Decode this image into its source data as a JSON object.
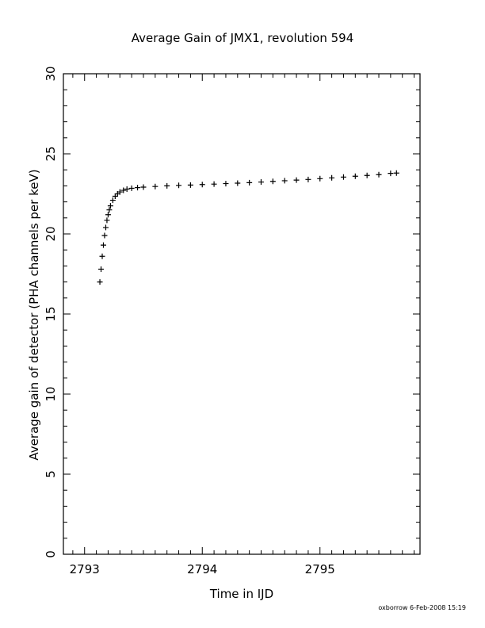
{
  "chart_data": {
    "type": "scatter",
    "title": "Average Gain of JMX1, revolution 594",
    "xlabel": "Time in IJD",
    "ylabel": "Average gain of detector (PHA channels per keV)",
    "xlim": [
      2792.82,
      2795.85
    ],
    "ylim": [
      0,
      30
    ],
    "xticks": [
      2793,
      2794,
      2795
    ],
    "xtick_labels": [
      "2793",
      "2794",
      "2795"
    ],
    "yticks": [
      0,
      5,
      10,
      15,
      20,
      25,
      30
    ],
    "ytick_labels": [
      "0",
      "5",
      "10",
      "15",
      "20",
      "25",
      "30"
    ],
    "marker": "+",
    "grid": false,
    "series": [
      {
        "x": [
          2793.13,
          2793.14,
          2793.15,
          2793.16,
          2793.17,
          2793.18,
          2793.19,
          2793.2,
          2793.21,
          2793.22,
          2793.24,
          2793.26,
          2793.28,
          2793.3,
          2793.33,
          2793.36,
          2793.4,
          2793.45,
          2793.5,
          2793.6,
          2793.7,
          2793.8,
          2793.9,
          2794.0,
          2794.1,
          2794.2,
          2794.3,
          2794.4,
          2794.5,
          2794.6,
          2794.7,
          2794.8,
          2794.9,
          2795.0,
          2795.1,
          2795.2,
          2795.3,
          2795.4,
          2795.5,
          2795.6,
          2795.65
        ],
        "y": [
          17.0,
          17.8,
          18.6,
          19.3,
          19.9,
          20.4,
          20.85,
          21.2,
          21.5,
          21.75,
          22.1,
          22.35,
          22.5,
          22.62,
          22.72,
          22.8,
          22.85,
          22.89,
          22.92,
          22.96,
          23.0,
          23.03,
          23.05,
          23.08,
          23.11,
          23.14,
          23.17,
          23.2,
          23.24,
          23.28,
          23.32,
          23.36,
          23.4,
          23.45,
          23.5,
          23.55,
          23.6,
          23.65,
          23.7,
          23.78,
          23.8
        ]
      }
    ]
  },
  "footer": {
    "stamp": "oxborrow   6-Feb-2008 15:19"
  }
}
